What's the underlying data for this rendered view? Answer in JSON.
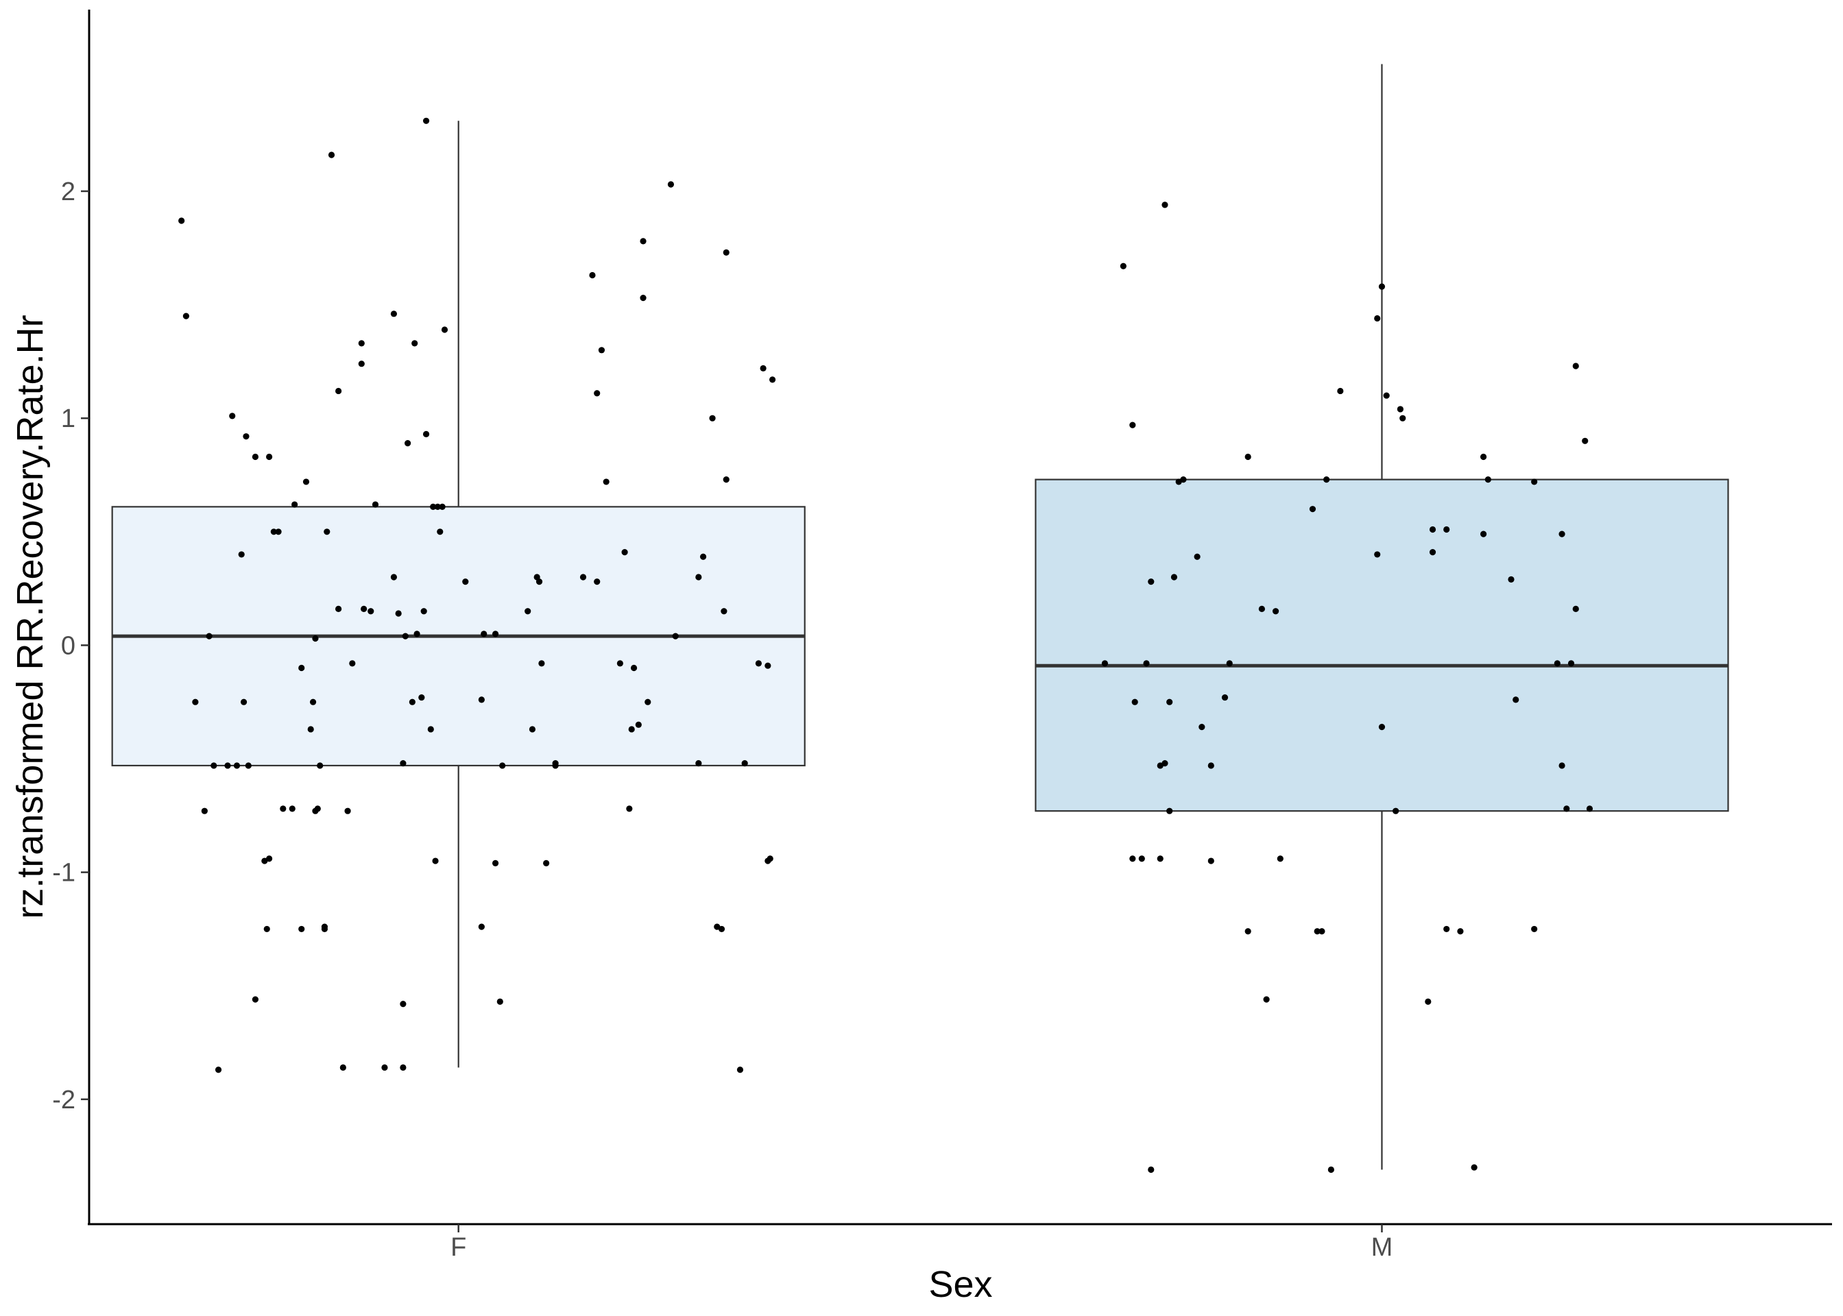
{
  "chart_data": {
    "type": "box",
    "xlabel": "Sex",
    "ylabel": "rz.transformed RR.Recovery.Rate.Hr",
    "categories": [
      "F",
      "M"
    ],
    "ylim": [
      -2.55,
      2.8
    ],
    "yticks": [
      -2,
      -1,
      0,
      1,
      2
    ],
    "ytick_labels": [
      "-2",
      "-1",
      "0",
      "1",
      "2"
    ],
    "grid": false,
    "legend": "none",
    "colors": {
      "F": "#ebf3fb",
      "M": "#cce2ef",
      "stroke": "#333333",
      "point": "#000000"
    },
    "boxes": [
      {
        "category": "F",
        "whisker_low": -1.86,
        "q1": -0.53,
        "median": 0.04,
        "q3": 0.61,
        "whisker_high": 2.31
      },
      {
        "category": "M",
        "whisker_low": -2.31,
        "q1": -0.73,
        "median": -0.09,
        "q3": 0.73,
        "whisker_high": 2.56
      }
    ],
    "points": [
      [
        0.6,
        1.87
      ],
      [
        0.61,
        1.45
      ],
      [
        0.63,
        -0.25
      ],
      [
        0.65,
        -0.73
      ],
      [
        0.66,
        0.04
      ],
      [
        0.67,
        -0.53
      ],
      [
        0.68,
        -1.87
      ],
      [
        0.7,
        -0.53
      ],
      [
        0.71,
        1.01
      ],
      [
        0.72,
        -0.53
      ],
      [
        0.73,
        0.4
      ],
      [
        0.735,
        -0.25
      ],
      [
        0.74,
        0.92
      ],
      [
        0.745,
        -0.53
      ],
      [
        0.76,
        -1.56
      ],
      [
        0.76,
        0.83
      ],
      [
        0.78,
        -0.95
      ],
      [
        0.785,
        -1.25
      ],
      [
        0.79,
        -0.94
      ],
      [
        0.79,
        0.83
      ],
      [
        0.8,
        0.5
      ],
      [
        0.81,
        0.5
      ],
      [
        0.82,
        -0.72
      ],
      [
        0.84,
        -0.72
      ],
      [
        0.845,
        0.62
      ],
      [
        0.86,
        -0.1
      ],
      [
        0.86,
        -1.25
      ],
      [
        0.87,
        0.72
      ],
      [
        0.88,
        -0.37
      ],
      [
        0.885,
        -0.25
      ],
      [
        0.89,
        -0.73
      ],
      [
        0.89,
        0.03
      ],
      [
        0.895,
        -0.72
      ],
      [
        0.9,
        -0.53
      ],
      [
        0.91,
        -1.24
      ],
      [
        0.91,
        -1.25
      ],
      [
        0.915,
        0.5
      ],
      [
        0.925,
        2.16
      ],
      [
        0.94,
        0.16
      ],
      [
        0.94,
        1.12
      ],
      [
        0.95,
        -1.86
      ],
      [
        0.96,
        -0.73
      ],
      [
        0.97,
        -0.08
      ],
      [
        0.99,
        1.24
      ],
      [
        0.99,
        1.33
      ],
      [
        0.995,
        0.16
      ],
      [
        1.01,
        0.15
      ],
      [
        1.02,
        0.62
      ],
      [
        1.04,
        -1.86
      ],
      [
        1.06,
        1.46
      ],
      [
        1.06,
        0.3
      ],
      [
        1.07,
        0.14
      ],
      [
        1.08,
        -0.52
      ],
      [
        1.08,
        -1.58
      ],
      [
        1.08,
        -1.86
      ],
      [
        1.085,
        0.04
      ],
      [
        1.09,
        0.89
      ],
      [
        1.1,
        -0.25
      ],
      [
        1.105,
        1.33
      ],
      [
        1.11,
        0.05
      ],
      [
        1.12,
        -0.23
      ],
      [
        1.125,
        0.15
      ],
      [
        1.13,
        0.93
      ],
      [
        1.13,
        2.31
      ],
      [
        1.14,
        -0.37
      ],
      [
        1.145,
        0.61
      ],
      [
        1.15,
        -0.95
      ],
      [
        1.155,
        0.61
      ],
      [
        1.16,
        0.5
      ],
      [
        1.165,
        0.61
      ],
      [
        1.17,
        1.39
      ],
      [
        1.215,
        0.28
      ],
      [
        1.25,
        -0.24
      ],
      [
        1.25,
        -1.24
      ],
      [
        1.255,
        0.05
      ],
      [
        1.28,
        0.05
      ],
      [
        1.28,
        -0.96
      ],
      [
        1.29,
        -1.57
      ],
      [
        1.295,
        -0.53
      ],
      [
        1.35,
        0.15
      ],
      [
        1.36,
        -0.37
      ],
      [
        1.37,
        0.3
      ],
      [
        1.375,
        0.28
      ],
      [
        1.38,
        -0.08
      ],
      [
        1.39,
        -0.96
      ],
      [
        1.41,
        -0.53
      ],
      [
        1.41,
        -0.52
      ],
      [
        1.47,
        0.3
      ],
      [
        1.49,
        1.63
      ],
      [
        1.5,
        1.11
      ],
      [
        1.5,
        0.28
      ],
      [
        1.51,
        1.3
      ],
      [
        1.52,
        0.72
      ],
      [
        1.55,
        -0.08
      ],
      [
        1.56,
        0.41
      ],
      [
        1.57,
        -0.72
      ],
      [
        1.575,
        -0.37
      ],
      [
        1.58,
        -0.1
      ],
      [
        1.59,
        -0.35
      ],
      [
        1.6,
        1.53
      ],
      [
        1.6,
        1.78
      ],
      [
        1.61,
        -0.25
      ],
      [
        1.66,
        2.03
      ],
      [
        1.67,
        0.04
      ],
      [
        1.72,
        0.3
      ],
      [
        1.72,
        -0.52
      ],
      [
        1.73,
        0.39
      ],
      [
        1.75,
        1.0
      ],
      [
        1.76,
        -1.24
      ],
      [
        1.77,
        -1.25
      ],
      [
        1.775,
        0.15
      ],
      [
        1.78,
        0.73
      ],
      [
        1.78,
        1.73
      ],
      [
        1.81,
        -1.87
      ],
      [
        1.82,
        -0.52
      ],
      [
        1.85,
        -0.08
      ],
      [
        1.86,
        1.22
      ],
      [
        1.87,
        -0.09
      ],
      [
        1.87,
        -0.95
      ],
      [
        1.875,
        -0.94
      ],
      [
        1.88,
        1.17
      ],
      [
        2.6,
        -0.08
      ],
      [
        2.64,
        1.67
      ],
      [
        2.66,
        0.97
      ],
      [
        2.66,
        -0.94
      ],
      [
        2.665,
        -0.25
      ],
      [
        2.68,
        -0.94
      ],
      [
        2.69,
        -0.08
      ],
      [
        2.7,
        0.28
      ],
      [
        2.7,
        -2.31
      ],
      [
        2.72,
        -0.94
      ],
      [
        2.72,
        -0.53
      ],
      [
        2.73,
        1.94
      ],
      [
        2.73,
        -0.52
      ],
      [
        2.74,
        -0.25
      ],
      [
        2.74,
        -0.73
      ],
      [
        2.75,
        0.3
      ],
      [
        2.76,
        0.72
      ],
      [
        2.77,
        0.73
      ],
      [
        2.8,
        0.39
      ],
      [
        2.81,
        -0.36
      ],
      [
        2.83,
        -0.53
      ],
      [
        2.83,
        -0.95
      ],
      [
        2.86,
        -0.23
      ],
      [
        2.87,
        -0.08
      ],
      [
        2.91,
        0.83
      ],
      [
        2.91,
        -1.26
      ],
      [
        2.94,
        0.16
      ],
      [
        2.95,
        -1.56
      ],
      [
        2.97,
        0.15
      ],
      [
        2.98,
        -0.94
      ],
      [
        3.05,
        0.6
      ],
      [
        3.06,
        -1.26
      ],
      [
        3.07,
        -1.26
      ],
      [
        3.08,
        0.73
      ],
      [
        3.09,
        -2.31
      ],
      [
        3.11,
        1.12
      ],
      [
        3.19,
        1.44
      ],
      [
        3.19,
        0.4
      ],
      [
        3.2,
        1.58
      ],
      [
        3.2,
        -0.36
      ],
      [
        3.21,
        1.1
      ],
      [
        3.23,
        -0.73
      ],
      [
        3.24,
        1.04
      ],
      [
        3.245,
        1.0
      ],
      [
        3.3,
        -1.57
      ],
      [
        3.31,
        0.41
      ],
      [
        3.31,
        0.51
      ],
      [
        3.34,
        0.51
      ],
      [
        3.34,
        -1.25
      ],
      [
        3.37,
        -1.26
      ],
      [
        3.4,
        -2.3
      ],
      [
        3.42,
        0.83
      ],
      [
        3.42,
        0.49
      ],
      [
        3.43,
        0.73
      ],
      [
        3.48,
        0.29
      ],
      [
        3.49,
        -0.24
      ],
      [
        3.53,
        0.72
      ],
      [
        3.53,
        -1.25
      ],
      [
        3.58,
        -0.08
      ],
      [
        3.59,
        0.49
      ],
      [
        3.59,
        -0.53
      ],
      [
        3.6,
        -0.72
      ],
      [
        3.61,
        -0.08
      ],
      [
        3.62,
        0.16
      ],
      [
        3.62,
        1.23
      ],
      [
        3.64,
        0.9
      ],
      [
        3.65,
        -0.72
      ]
    ]
  }
}
